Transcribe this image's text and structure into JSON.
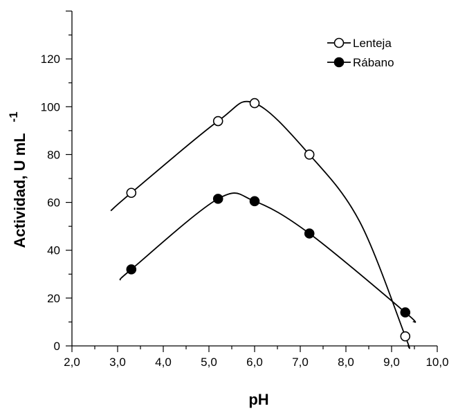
{
  "chart_data": {
    "type": "scatter",
    "xlabel": "pH",
    "ylabel": "Actividad, U mL",
    "ylabel_superscript": "-1",
    "xlim": [
      2.0,
      10.0
    ],
    "ylim": [
      0,
      140
    ],
    "x_ticks": [
      "2,0",
      "3,0",
      "4,0",
      "5,0",
      "6,0",
      "7,0",
      "8,0",
      "9,0",
      "10,0"
    ],
    "y_ticks": [
      "0",
      "20",
      "40",
      "60",
      "80",
      "100",
      "120"
    ],
    "grid": false,
    "legend_position": "top-right",
    "series": [
      {
        "name": "Lenteja",
        "marker": "open-circle",
        "points": [
          {
            "x": 3.3,
            "y": 64
          },
          {
            "x": 5.2,
            "y": 94
          },
          {
            "x": 6.0,
            "y": 101.5
          },
          {
            "x": 7.2,
            "y": 80
          },
          {
            "x": 9.3,
            "y": 4
          }
        ],
        "curve": [
          {
            "x": 2.85,
            "y": 56.5
          },
          {
            "x": 3.3,
            "y": 64
          },
          {
            "x": 5.2,
            "y": 94
          },
          {
            "x": 6.0,
            "y": 101.5
          },
          {
            "x": 7.2,
            "y": 80
          },
          {
            "x": 8.3,
            "y": 52
          },
          {
            "x": 9.3,
            "y": 4
          },
          {
            "x": 9.36,
            "y": 0
          }
        ]
      },
      {
        "name": "Rábano",
        "marker": "filled-circle",
        "points": [
          {
            "x": 3.3,
            "y": 32
          },
          {
            "x": 5.2,
            "y": 61.5
          },
          {
            "x": 6.0,
            "y": 60.5
          },
          {
            "x": 7.2,
            "y": 47
          },
          {
            "x": 9.3,
            "y": 14
          }
        ],
        "curve": [
          {
            "x": 3.05,
            "y": 27.5
          },
          {
            "x": 3.3,
            "y": 32
          },
          {
            "x": 5.2,
            "y": 61.5
          },
          {
            "x": 6.0,
            "y": 60.5
          },
          {
            "x": 7.2,
            "y": 47
          },
          {
            "x": 9.3,
            "y": 14
          },
          {
            "x": 9.48,
            "y": 10
          }
        ]
      }
    ]
  }
}
